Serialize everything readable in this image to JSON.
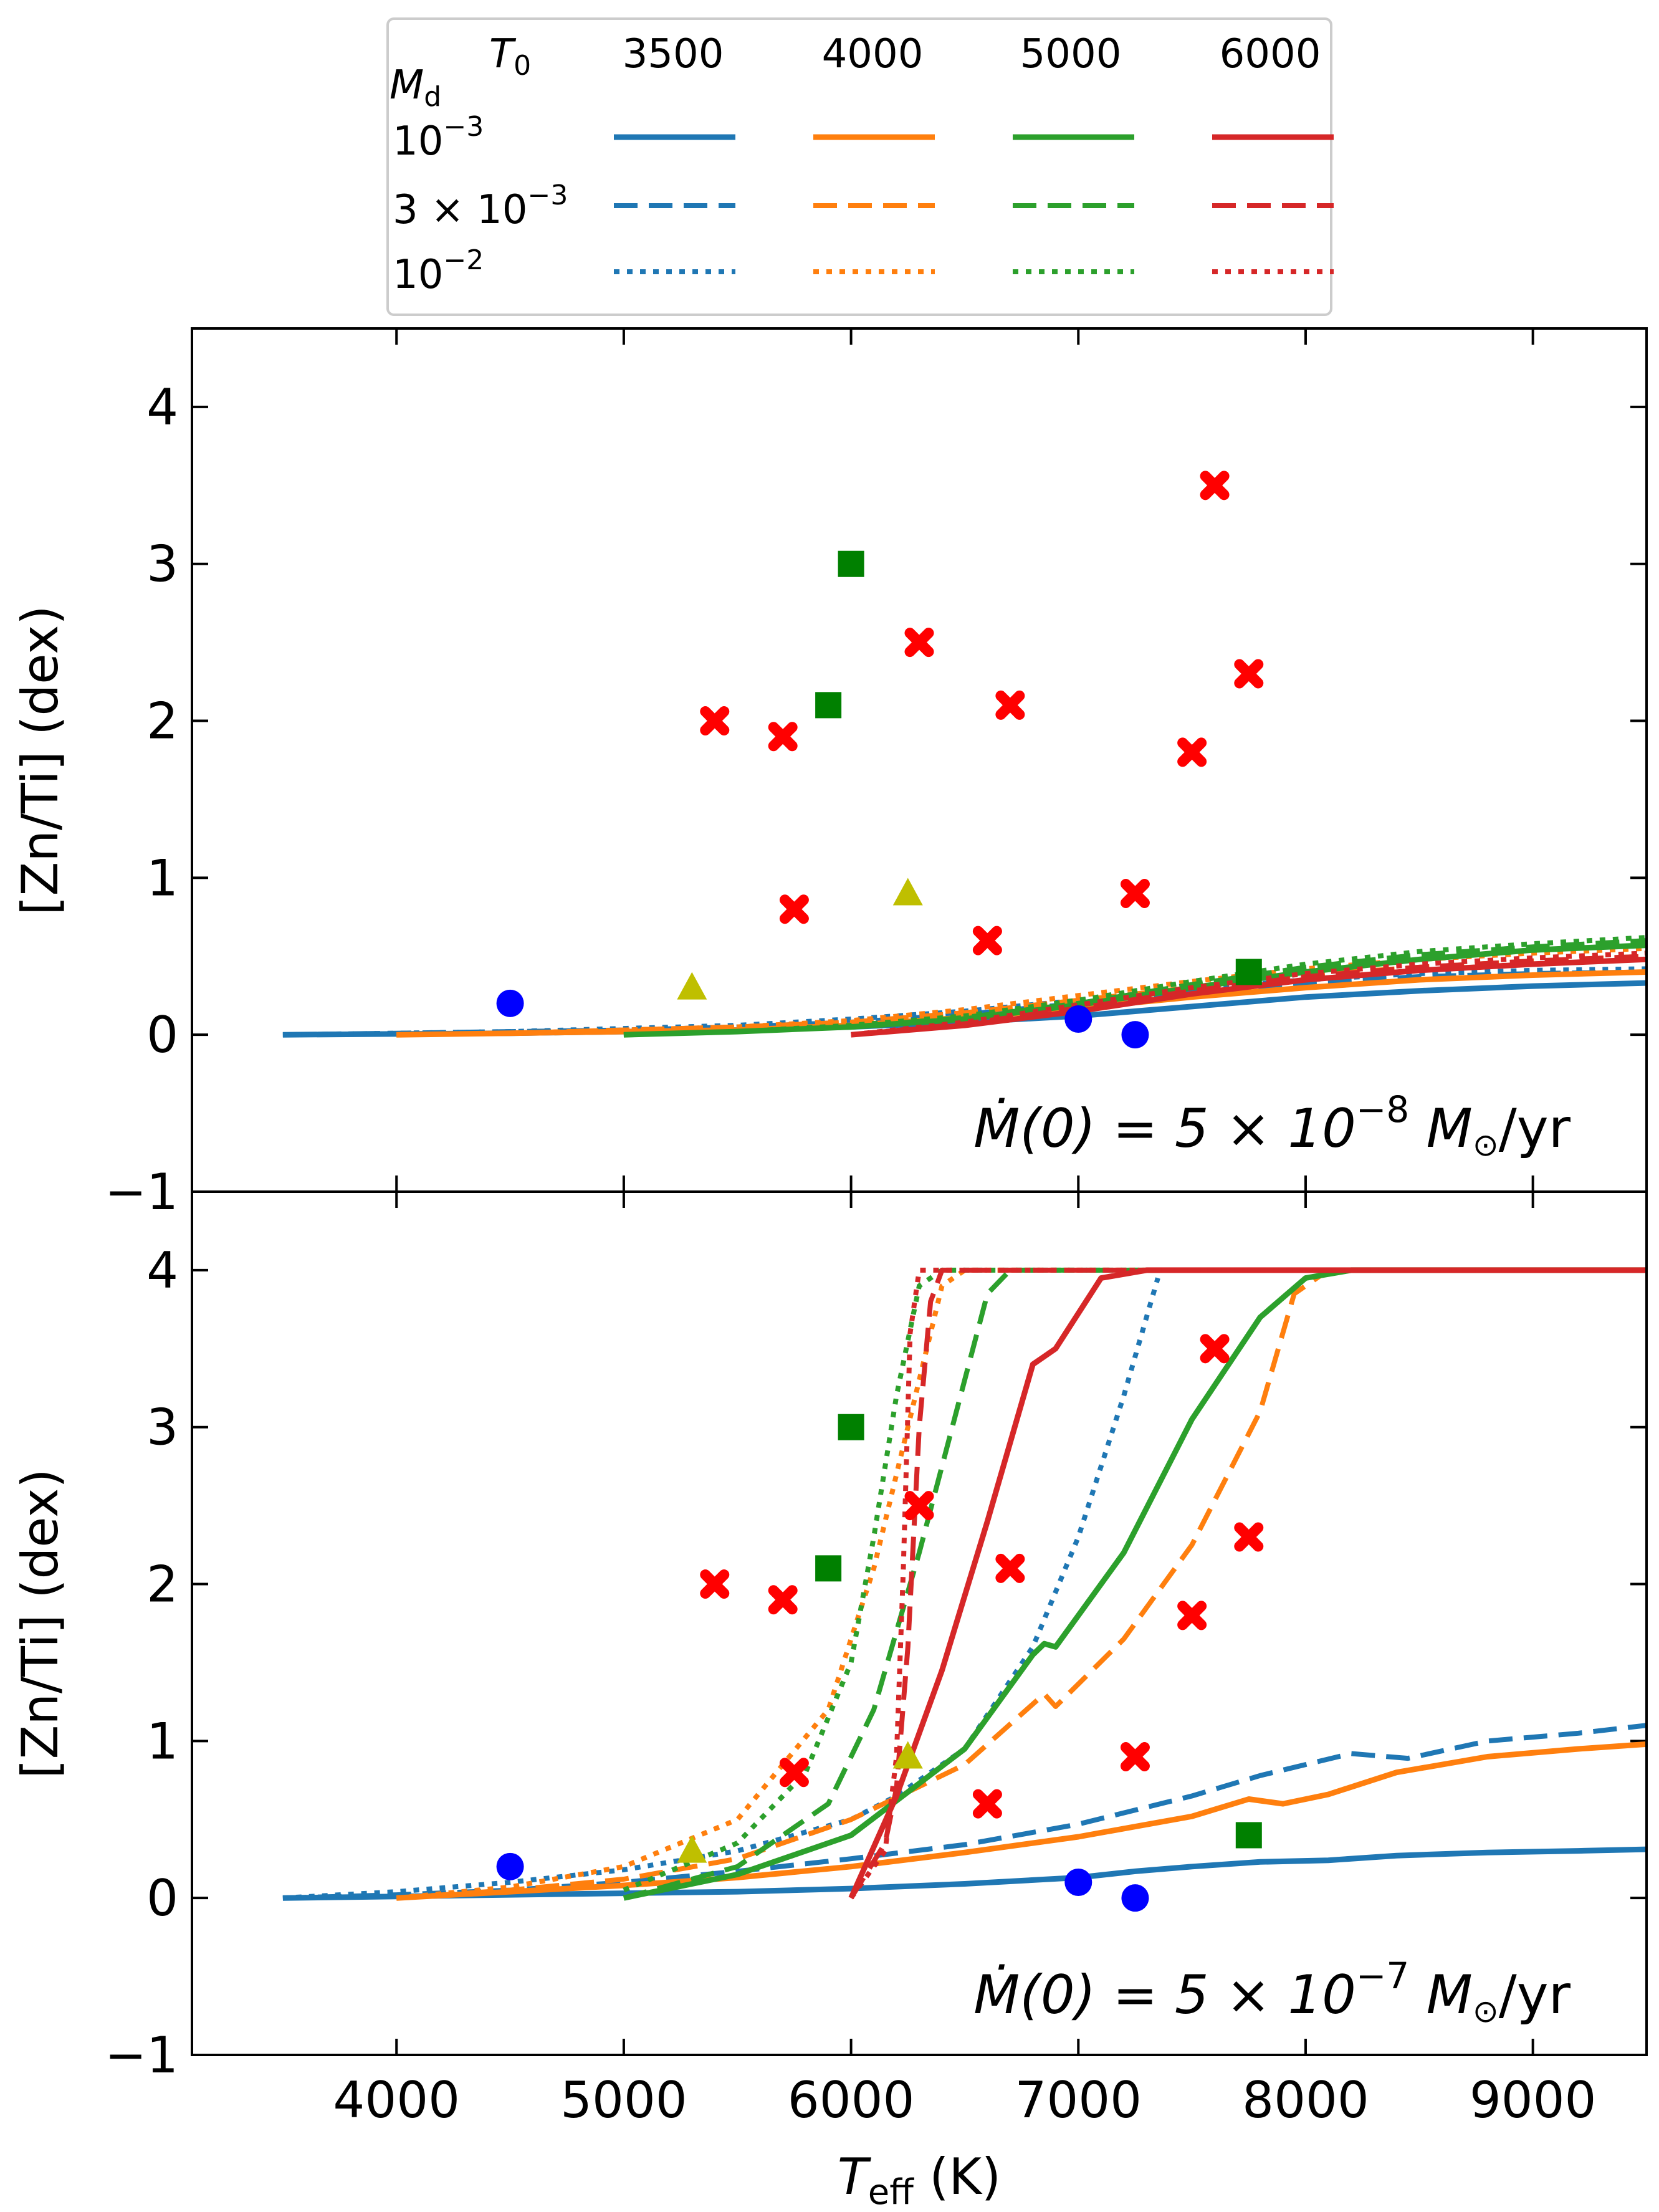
{
  "colors": {
    "T3500": "#1f77b4",
    "T4000": "#ff7f0e",
    "T5000": "#2ca02c",
    "T6000": "#d62728",
    "marker_red": "#ff0000",
    "marker_green": "#008000",
    "marker_yellow": "#bfbf00",
    "marker_blue": "#0000ff"
  },
  "legend": {
    "md_label": "M",
    "md_sub": "d",
    "t0_label": "T",
    "t0_sub": "0",
    "temps": [
      "3500",
      "4000",
      "5000",
      "6000"
    ],
    "rows": [
      {
        "label": "10",
        "sup": "−3",
        "prefix": "",
        "style": "solid"
      },
      {
        "label": "10",
        "sup": "−3",
        "prefix": "3 × ",
        "style": "dashed"
      },
      {
        "label": "10",
        "sup": "−2",
        "prefix": "",
        "style": "dotted"
      }
    ]
  },
  "chart_data": [
    {
      "type": "line",
      "panel": "top",
      "ylabel": "[Zn/Ti] (dex)",
      "xlim": [
        3100,
        9500
      ],
      "ylim": [
        -1,
        4.5
      ],
      "yticks": [
        "−1",
        "0",
        "1",
        "2",
        "3",
        "4"
      ],
      "annotation": {
        "prefix": "Ṁ(0) = 5 × 10",
        "exp": "−8",
        "suffix": " M",
        "sun": "⊙",
        "unit": "/yr"
      },
      "series": [
        {
          "name": "T0=3500 Md=1e-3",
          "color_key": "T3500",
          "style": "solid",
          "x": [
            3500,
            4000,
            4500,
            5000,
            5500,
            6000,
            6500,
            7000,
            7500,
            8000,
            8500,
            9000,
            9500
          ],
          "y": [
            0,
            0.005,
            0.01,
            0.02,
            0.03,
            0.05,
            0.08,
            0.12,
            0.18,
            0.24,
            0.28,
            0.31,
            0.33
          ]
        },
        {
          "name": "T0=3500 Md=3e-3",
          "color_key": "T3500",
          "style": "dashed",
          "x": [
            3500,
            4000,
            4500,
            5000,
            5500,
            6000,
            6500,
            7000,
            7500,
            8000,
            8500,
            9000,
            9500
          ],
          "y": [
            0,
            0.01,
            0.02,
            0.03,
            0.05,
            0.08,
            0.13,
            0.2,
            0.27,
            0.33,
            0.37,
            0.39,
            0.4
          ]
        },
        {
          "name": "T0=3500 Md=1e-2",
          "color_key": "T3500",
          "style": "dotted",
          "x": [
            3500,
            4000,
            4500,
            5000,
            5500,
            6000,
            6500,
            7000,
            7500,
            8000,
            8500,
            9000,
            9500
          ],
          "y": [
            0,
            0.01,
            0.02,
            0.04,
            0.06,
            0.1,
            0.15,
            0.22,
            0.29,
            0.35,
            0.39,
            0.41,
            0.42
          ]
        },
        {
          "name": "T0=4000 Md=1e-3",
          "color_key": "T4000",
          "style": "solid",
          "x": [
            4000,
            4500,
            5000,
            5500,
            6000,
            6500,
            7000,
            7500,
            8000,
            8500,
            9000,
            9500
          ],
          "y": [
            0,
            0.01,
            0.02,
            0.03,
            0.06,
            0.11,
            0.17,
            0.24,
            0.3,
            0.35,
            0.38,
            0.4
          ]
        },
        {
          "name": "T0=4000 Md=3e-3",
          "color_key": "T4000",
          "style": "dashed",
          "x": [
            4000,
            4500,
            5000,
            5500,
            6000,
            6500,
            7000,
            7500,
            8000,
            8500,
            9000,
            9500
          ],
          "y": [
            0,
            0.01,
            0.03,
            0.05,
            0.08,
            0.14,
            0.22,
            0.3,
            0.38,
            0.43,
            0.47,
            0.5
          ]
        },
        {
          "name": "T0=4000 Md=1e-2",
          "color_key": "T4000",
          "style": "dotted",
          "x": [
            4000,
            4500,
            5000,
            5500,
            6000,
            6500,
            7000,
            7500,
            8000,
            8500,
            9000,
            9500
          ],
          "y": [
            0,
            0.01,
            0.03,
            0.05,
            0.09,
            0.16,
            0.25,
            0.34,
            0.42,
            0.48,
            0.52,
            0.55
          ]
        },
        {
          "name": "T0=5000 Md=1e-3",
          "color_key": "T5000",
          "style": "solid",
          "x": [
            5000,
            5500,
            6000,
            6500,
            7000,
            7500,
            8000,
            8500,
            9000,
            9500
          ],
          "y": [
            0,
            0.02,
            0.05,
            0.1,
            0.19,
            0.3,
            0.4,
            0.48,
            0.54,
            0.57
          ]
        },
        {
          "name": "T0=5000 Md=3e-3",
          "color_key": "T5000",
          "style": "dashed",
          "x": [
            5000,
            5500,
            6000,
            6500,
            7000,
            7500,
            8000,
            8500,
            9000,
            9500
          ],
          "y": [
            0,
            0.02,
            0.05,
            0.11,
            0.2,
            0.32,
            0.43,
            0.51,
            0.56,
            0.6
          ]
        },
        {
          "name": "T0=5000 Md=1e-2",
          "color_key": "T5000",
          "style": "dotted",
          "x": [
            5000,
            5500,
            6000,
            6500,
            7000,
            7500,
            8000,
            8500,
            9000,
            9500
          ],
          "y": [
            0,
            0.02,
            0.06,
            0.12,
            0.22,
            0.34,
            0.45,
            0.53,
            0.58,
            0.62
          ]
        },
        {
          "name": "T0=6000 Md=1e-3",
          "color_key": "T6000",
          "style": "solid",
          "x": [
            6000,
            6500,
            7000,
            7500,
            8000,
            8500,
            9000,
            9500
          ],
          "y": [
            0,
            0.06,
            0.15,
            0.26,
            0.35,
            0.41,
            0.45,
            0.48
          ]
        },
        {
          "name": "T0=6000 Md=3e-3",
          "color_key": "T6000",
          "style": "dashed",
          "x": [
            6000,
            6500,
            7000,
            7500,
            8000,
            8500,
            9000,
            9500
          ],
          "y": [
            0,
            0.07,
            0.17,
            0.28,
            0.37,
            0.43,
            0.47,
            0.5
          ]
        },
        {
          "name": "T0=6000 Md=1e-2",
          "color_key": "T6000",
          "style": "dotted",
          "x": [
            6000,
            6500,
            7000,
            7500,
            8000,
            8500,
            9000,
            9500
          ],
          "y": [
            0,
            0.08,
            0.19,
            0.3,
            0.39,
            0.45,
            0.49,
            0.52
          ]
        }
      ],
      "markers": [
        {
          "shape": "cross",
          "color_key": "marker_red",
          "x": [
            5400,
            5700,
            5750,
            6300,
            6600,
            6700,
            7250,
            7500,
            7600,
            7750
          ],
          "y": [
            2.0,
            1.9,
            0.8,
            2.5,
            0.6,
            2.1,
            0.9,
            1.8,
            3.5,
            2.3
          ]
        },
        {
          "shape": "square",
          "color_key": "marker_green",
          "x": [
            5900,
            6000,
            7750
          ],
          "y": [
            2.1,
            3.0,
            0.4
          ]
        },
        {
          "shape": "triangle",
          "color_key": "marker_yellow",
          "x": [
            5300,
            6250
          ],
          "y": [
            0.3,
            0.9
          ]
        },
        {
          "shape": "circle",
          "color_key": "marker_blue",
          "x": [
            4500,
            7000,
            7250
          ],
          "y": [
            0.2,
            0.1,
            0.0
          ]
        }
      ]
    },
    {
      "type": "line",
      "panel": "bottom",
      "xlabel": "T",
      "xlabel_sub": "eff",
      "xlabel_unit": " (K)",
      "ylabel": "[Zn/Ti] (dex)",
      "xlim": [
        3100,
        9500
      ],
      "ylim": [
        -1,
        4.5
      ],
      "xticks": [
        "4000",
        "5000",
        "6000",
        "7000",
        "8000",
        "9000"
      ],
      "yticks": [
        "−1",
        "0",
        "1",
        "2",
        "3",
        "4"
      ],
      "annotation": {
        "prefix": "Ṁ(0) = 5 × 10",
        "exp": "−7",
        "suffix": " M",
        "sun": "⊙",
        "unit": "/yr"
      },
      "series": [
        {
          "name": "T0=3500 Md=1e-3",
          "color_key": "T3500",
          "style": "solid",
          "x": [
            3500,
            4000,
            4500,
            5000,
            5500,
            6000,
            6500,
            7000,
            7250,
            7500,
            7800,
            8100,
            8400,
            8800,
            9200,
            9500
          ],
          "y": [
            0,
            0.01,
            0.02,
            0.03,
            0.04,
            0.06,
            0.09,
            0.13,
            0.17,
            0.2,
            0.23,
            0.24,
            0.27,
            0.29,
            0.3,
            0.31
          ]
        },
        {
          "name": "T0=3500 Md=3e-3",
          "color_key": "T3500",
          "style": "dashed",
          "x": [
            3500,
            4000,
            4500,
            5000,
            5500,
            6000,
            6500,
            7000,
            7500,
            7800,
            8000,
            8200,
            8450,
            8800,
            9200,
            9500
          ],
          "y": [
            0,
            0.02,
            0.05,
            0.1,
            0.17,
            0.25,
            0.34,
            0.47,
            0.65,
            0.78,
            0.85,
            0.92,
            0.89,
            1.0,
            1.05,
            1.1
          ]
        },
        {
          "name": "T0=3500 Md=1e-2",
          "color_key": "T3500",
          "style": "dotted",
          "x": [
            3500,
            4000,
            4500,
            5000,
            5500,
            6000,
            6200,
            6500,
            6800,
            7000,
            7200,
            7350
          ],
          "y": [
            0,
            0.04,
            0.1,
            0.18,
            0.3,
            0.5,
            0.65,
            0.95,
            1.6,
            2.3,
            3.2,
            3.95
          ]
        },
        {
          "name": "T0=4000 Md=1e-3",
          "color_key": "T4000",
          "style": "solid",
          "x": [
            4000,
            4500,
            5000,
            5500,
            6000,
            6500,
            7000,
            7500,
            7750,
            7900,
            8100,
            8400,
            8800,
            9200,
            9500
          ],
          "y": [
            0,
            0.04,
            0.08,
            0.13,
            0.2,
            0.29,
            0.39,
            0.52,
            0.63,
            0.6,
            0.66,
            0.8,
            0.9,
            0.95,
            0.98
          ]
        },
        {
          "name": "T0=4000 Md=3e-3",
          "color_key": "T4000",
          "style": "dashed",
          "x": [
            4000,
            4500,
            5000,
            5500,
            6000,
            6500,
            6850,
            6900,
            7200,
            7500,
            7800,
            7950,
            8100,
            9500
          ],
          "y": [
            0,
            0.05,
            0.12,
            0.25,
            0.5,
            0.85,
            1.3,
            1.22,
            1.65,
            2.25,
            3.1,
            3.85,
            4.0,
            4.0
          ]
        },
        {
          "name": "T0=4000 Md=1e-2",
          "color_key": "T4000",
          "style": "dotted",
          "x": [
            4000,
            4500,
            5000,
            5500,
            5900,
            6100,
            6300,
            6400,
            6500,
            7000,
            9500
          ],
          "y": [
            0,
            0.07,
            0.2,
            0.5,
            1.2,
            2.1,
            3.3,
            3.9,
            4.0,
            4.0,
            4.0
          ]
        },
        {
          "name": "T0=5000 Md=1e-3",
          "color_key": "T5000",
          "style": "solid",
          "x": [
            5000,
            5500,
            6000,
            6500,
            6800,
            6850,
            6900,
            7200,
            7500,
            7800,
            8000,
            8200,
            9500
          ],
          "y": [
            0,
            0.15,
            0.4,
            0.95,
            1.55,
            1.62,
            1.6,
            2.2,
            3.05,
            3.7,
            3.95,
            4.0,
            4.0
          ]
        },
        {
          "name": "T0=5000 Md=3e-3",
          "color_key": "T5000",
          "style": "dashed",
          "x": [
            5000,
            5500,
            5900,
            6100,
            6300,
            6500,
            6600,
            6700,
            9500
          ],
          "y": [
            0,
            0.2,
            0.6,
            1.2,
            2.2,
            3.3,
            3.85,
            4.0,
            4.0
          ]
        },
        {
          "name": "T0=5000 Md=1e-2",
          "color_key": "T5000",
          "style": "dotted",
          "x": [
            5000,
            5500,
            5800,
            6000,
            6100,
            6200,
            6300,
            6400,
            9500
          ],
          "y": [
            0.05,
            0.35,
            0.8,
            1.5,
            2.3,
            3.2,
            3.9,
            4.0,
            4.0
          ]
        },
        {
          "name": "T0=6000 Md=1e-3",
          "color_key": "T6000",
          "style": "solid",
          "x": [
            6000,
            6200,
            6400,
            6600,
            6800,
            6850,
            6900,
            7100,
            7300,
            9500
          ],
          "y": [
            0,
            0.65,
            1.45,
            2.4,
            3.4,
            3.45,
            3.5,
            3.95,
            4.0,
            4.0
          ]
        },
        {
          "name": "T0=6000 Md=3e-3",
          "color_key": "T6000",
          "style": "dashed",
          "x": [
            6000,
            6150,
            6200,
            6250,
            6300,
            6350,
            6400,
            9500
          ],
          "y": [
            0,
            0.35,
            0.7,
            1.6,
            3.0,
            3.8,
            4.0,
            4.0
          ]
        },
        {
          "name": "T0=6000 Md=1e-2",
          "color_key": "T6000",
          "style": "dotted",
          "x": [
            6000,
            6150,
            6200,
            6230,
            6260,
            6300,
            9500
          ],
          "y": [
            0,
            0.3,
            0.9,
            2.1,
            3.6,
            4.0,
            4.0
          ]
        }
      ],
      "markers": [
        {
          "shape": "cross",
          "color_key": "marker_red",
          "x": [
            5400,
            5700,
            5750,
            6300,
            6600,
            6700,
            7250,
            7500,
            7600,
            7750
          ],
          "y": [
            2.0,
            1.9,
            0.8,
            2.5,
            0.6,
            2.1,
            0.9,
            1.8,
            3.5,
            2.3
          ]
        },
        {
          "shape": "square",
          "color_key": "marker_green",
          "x": [
            5900,
            6000,
            7750
          ],
          "y": [
            2.1,
            3.0,
            0.4
          ]
        },
        {
          "shape": "triangle",
          "color_key": "marker_yellow",
          "x": [
            5300,
            6250
          ],
          "y": [
            0.3,
            0.9
          ]
        },
        {
          "shape": "circle",
          "color_key": "marker_blue",
          "x": [
            4500,
            7000,
            7250
          ],
          "y": [
            0.2,
            0.1,
            0.0
          ]
        }
      ]
    }
  ]
}
